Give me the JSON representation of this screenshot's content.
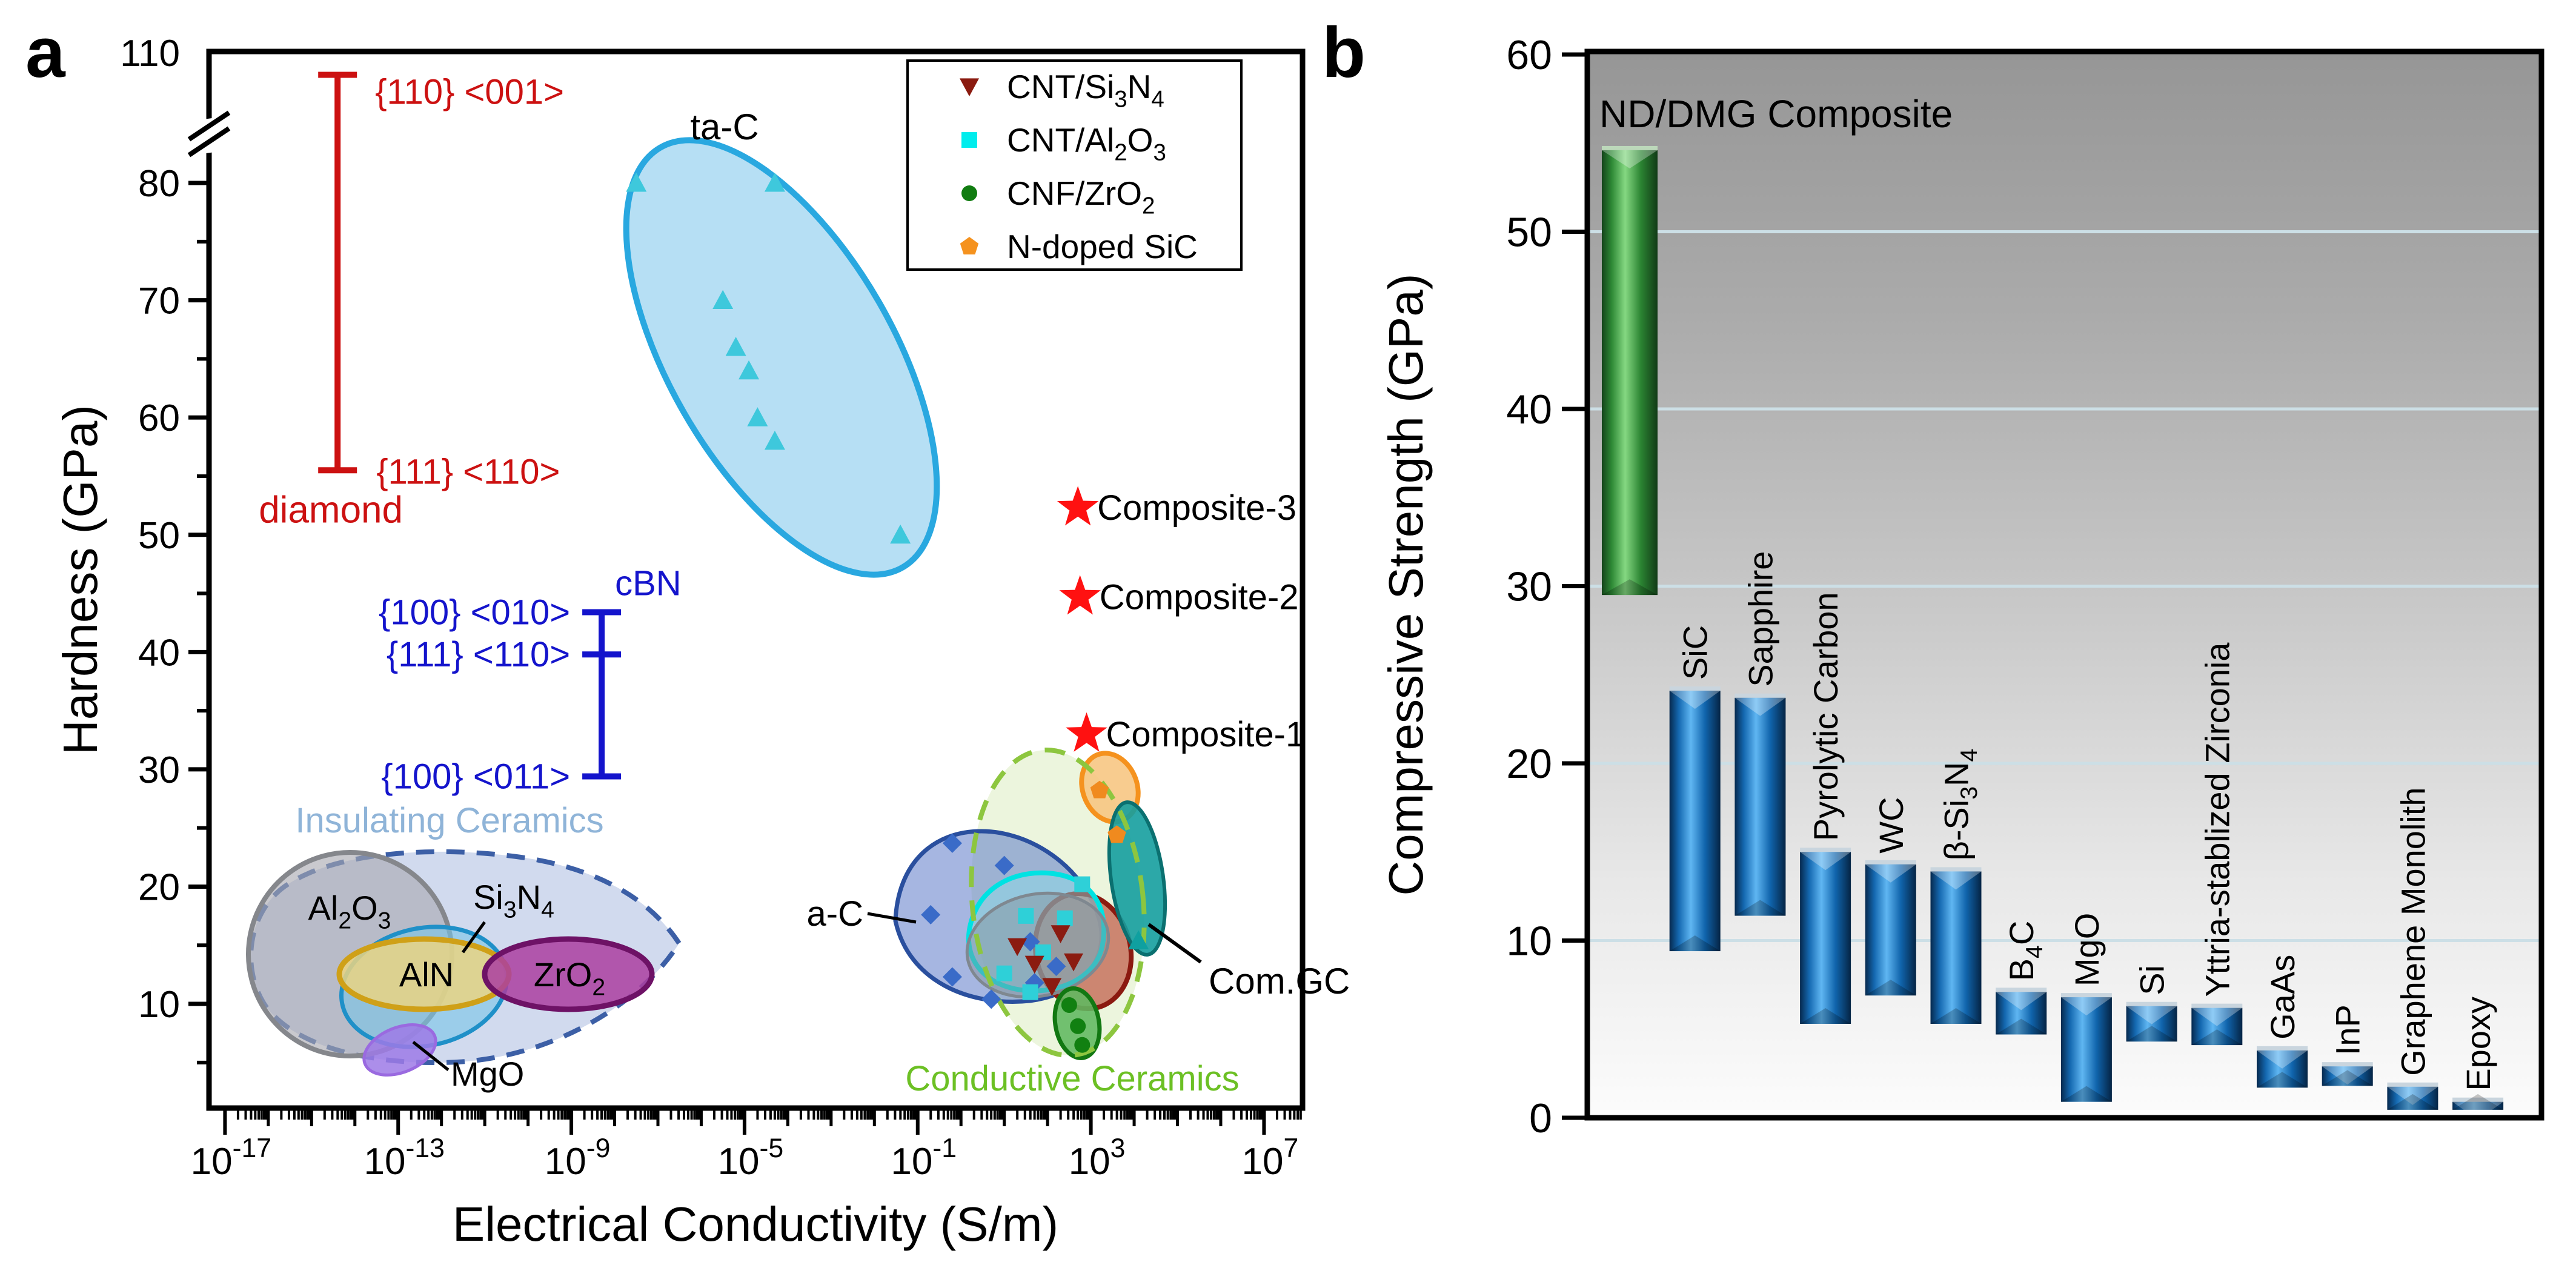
{
  "chart_data": [
    {
      "id": "panel-a",
      "panel_label": "a",
      "type": "scatter",
      "xlabel": "Electrical Conductivity (S/m)",
      "ylabel": "Hardness (GPa)",
      "x_scale": "log10",
      "x_labeled_exponents": [
        -17,
        -13,
        -9,
        -5,
        -1,
        3,
        7
      ],
      "x_range_exponents": [
        -17.35,
        7.85
      ],
      "y_ticks": [
        10,
        20,
        30,
        40,
        50,
        60,
        70,
        80
      ],
      "y_minor_ticks": [
        5,
        15,
        25,
        35,
        45,
        55,
        65,
        75,
        85
      ],
      "y_axis_break": true,
      "y_break_top_label": "110",
      "legend": {
        "entries": [
          {
            "name": "CNT/Si3N4",
            "segments": [
              [
                "CNT/Si",
                0
              ],
              [
                "3",
                1
              ],
              [
                "N",
                0
              ],
              [
                "4",
                1
              ]
            ],
            "marker": "triangle-down",
            "color": "#8B1B10"
          },
          {
            "name": "CNT/Al2O3",
            "segments": [
              [
                "CNT/Al",
                0
              ],
              [
                "2",
                1
              ],
              [
                "O",
                0
              ],
              [
                "3",
                1
              ]
            ],
            "marker": "square",
            "color": "#00EDED"
          },
          {
            "name": "CNF/ZrO2",
            "segments": [
              [
                "CNF/ZrO",
                0
              ],
              [
                "2",
                1
              ]
            ],
            "marker": "circle",
            "color": "#117C11"
          },
          {
            "name": "N-doped SiC",
            "segments": [
              [
                "N-doped SiC",
                0
              ]
            ],
            "marker": "pentagon",
            "color": "#F5921E"
          }
        ]
      },
      "error_bars": [
        {
          "name": "diamond",
          "color": "#CC1111",
          "x_exp": -14.4,
          "top": 102,
          "bottom": 55.5,
          "top_label": "{110} <001>",
          "bottom_label": "{111} <110>",
          "name_label": "diamond"
        },
        {
          "name": "cBN",
          "color": "#1414CC",
          "x_exp": -8.3,
          "top": 43.4,
          "mid": 39.8,
          "bottom": 29.4,
          "top_label": "{100} <010>",
          "mid_label": "{111} <110>",
          "bottom_label": "{100} <011>",
          "name_label": "cBN"
        }
      ],
      "series": [
        {
          "name": "ta-C",
          "marker": "triangle-up",
          "color": "#3EC8DC",
          "points": [
            [
              -7.5,
              80
            ],
            [
              -4.3,
              80
            ],
            [
              -5.5,
              70
            ],
            [
              -5.2,
              66
            ],
            [
              -4.9,
              64
            ],
            [
              -4.7,
              60
            ],
            [
              -4.3,
              58
            ],
            [
              -1.4,
              50
            ]
          ]
        },
        {
          "name": "a-C",
          "marker": "diamond",
          "color": "#3A6BC8",
          "points": [
            [
              -0.2,
              23.7
            ],
            [
              1.0,
              21.8
            ],
            [
              -0.7,
              17.6
            ],
            [
              1.6,
              15.3
            ],
            [
              -0.2,
              12.3
            ],
            [
              0.7,
              10.4
            ],
            [
              2.2,
              13.2
            ],
            [
              1.7,
              11.8
            ]
          ]
        },
        {
          "name": "CNT/Al2O3",
          "marker": "square",
          "color": "#2ED0D8",
          "points": [
            [
              2.8,
              20.2
            ],
            [
              1.5,
              17.5
            ],
            [
              2.4,
              17.3
            ],
            [
              1.9,
              14.4
            ],
            [
              1.0,
              12.6
            ],
            [
              1.6,
              11.0
            ]
          ]
        },
        {
          "name": "CNT/Si3N4",
          "marker": "triangle-down",
          "color": "#8B1B10",
          "points": [
            [
              2.3,
              16.0
            ],
            [
              1.3,
              14.9
            ],
            [
              1.7,
              13.4
            ],
            [
              2.6,
              13.6
            ],
            [
              2.1,
              11.5
            ]
          ]
        },
        {
          "name": "CNF/ZrO2",
          "marker": "circle",
          "color": "#118011",
          "points": [
            [
              2.5,
              9.9
            ],
            [
              2.7,
              8.1
            ],
            [
              2.8,
              6.5
            ]
          ]
        },
        {
          "name": "N-doped SiC",
          "marker": "pentagon",
          "color": "#F08A1E",
          "points": [
            [
              3.2,
              28.2
            ],
            [
              3.6,
              24.4
            ]
          ]
        },
        {
          "name": "Com.GC",
          "marker": "triangle-up",
          "color": "#0FA0A0",
          "points": [
            [
              4.1,
              15.4
            ]
          ]
        }
      ],
      "stars": {
        "color": "#FF1111",
        "items": [
          {
            "label": "Composite-1",
            "x_exp": 2.9,
            "hardness": 33.0
          },
          {
            "label": "Composite-2",
            "x_exp": 2.75,
            "hardness": 44.7
          },
          {
            "label": "Composite-3",
            "x_exp": 2.7,
            "hardness": 52.3
          }
        ]
      },
      "regions": {
        "ta_c_label": "ta-C",
        "insulating": {
          "label": "Insulating Ceramics",
          "label_color": "#8FB4D8",
          "stroke": "#3C5FA6",
          "fill": "rgba(163,182,222,0.50)"
        },
        "conductive": {
          "label": "Conductive Ceramics",
          "label_color": "#6CC024",
          "stroke": "#8DC63F",
          "fill": "rgba(230,242,210,0.75)"
        },
        "a_c_label": "a-C",
        "com_gc_label": "Com.GC",
        "materials": [
          {
            "key": "Al2O3",
            "segments": [
              [
                "Al",
                0
              ],
              [
                "2",
                1
              ],
              [
                "O",
                0
              ],
              [
                "3",
                1
              ]
            ]
          },
          {
            "key": "Si3N4",
            "segments": [
              [
                "Si",
                0
              ],
              [
                "3",
                1
              ],
              [
                "N",
                0
              ],
              [
                "4",
                1
              ]
            ]
          },
          {
            "key": "AlN",
            "segments": [
              [
                "AlN",
                0
              ]
            ]
          },
          {
            "key": "ZrO2",
            "segments": [
              [
                "ZrO",
                0
              ],
              [
                "2",
                1
              ]
            ]
          },
          {
            "key": "MgO",
            "segments": [
              [
                "MgO",
                0
              ]
            ]
          }
        ]
      }
    },
    {
      "id": "panel-b",
      "panel_label": "b",
      "type": "bar",
      "ylabel": "Compressive Strength (GPa)",
      "ylim": [
        0,
        60
      ],
      "y_ticks": [
        0,
        10,
        20,
        30,
        40,
        50,
        60
      ],
      "gridlines": [
        10,
        20,
        30,
        40,
        50
      ],
      "annotation": "ND/DMG Composite",
      "colors": {
        "bar_blue": [
          "#06294E",
          "#1468B0",
          "#5FB6F2",
          "#1064AC",
          "#052444"
        ],
        "bar_green": [
          "#14441A",
          "#2E8A36",
          "#85D882",
          "#2B8432",
          "#113A16"
        ],
        "gridline": "#CCDFE6",
        "bg_top": "#969696",
        "bg_bottom": "#FCFCFC"
      },
      "bars": [
        {
          "label": "ND/DMG Composite",
          "min": 29.5,
          "max": 54.6,
          "color": "green",
          "rotated_label": false
        },
        {
          "label": "SiC",
          "min": 9.4,
          "max": 24.1
        },
        {
          "label": "Sapphire",
          "min": 11.4,
          "max": 23.7
        },
        {
          "label": "Pyrolytic Carbon",
          "min": 5.3,
          "max": 15.0
        },
        {
          "label": "WC",
          "min": 6.9,
          "max": 14.3
        },
        {
          "label": "β-Si3N4",
          "segments": [
            [
              "β-Si",
              0
            ],
            [
              "3",
              1
            ],
            [
              "N",
              0
            ],
            [
              "4",
              1
            ]
          ],
          "min": 5.3,
          "max": 13.9
        },
        {
          "label": "B4C",
          "segments": [
            [
              "B",
              0
            ],
            [
              "4",
              1
            ],
            [
              "C",
              0
            ]
          ],
          "min": 4.7,
          "max": 7.1
        },
        {
          "label": "MgO",
          "min": 0.9,
          "max": 6.8
        },
        {
          "label": "Si",
          "min": 4.3,
          "max": 6.3
        },
        {
          "label": "Yttria-stablized Zirconia",
          "min": 4.1,
          "max": 6.2
        },
        {
          "label": "GaAs",
          "min": 1.7,
          "max": 3.8
        },
        {
          "label": "InP",
          "min": 1.8,
          "max": 2.9
        },
        {
          "label": "Graphene Monolith",
          "min": 0.45,
          "max": 1.75
        },
        {
          "label": "Epoxy",
          "min": 0.45,
          "max": 0.9
        }
      ]
    }
  ]
}
